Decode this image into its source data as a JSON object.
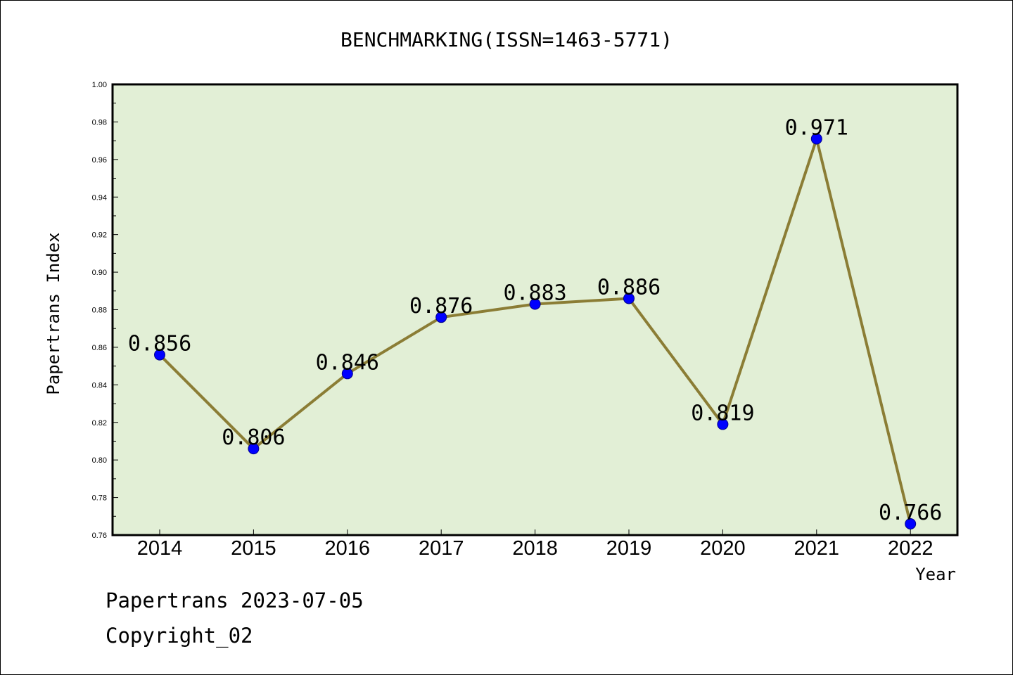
{
  "chart_data": {
    "type": "line",
    "title": "BENCHMARKING(ISSN=1463-5771)",
    "xlabel": "Year",
    "ylabel": "Papertrans Index",
    "categories": [
      "2014",
      "2015",
      "2016",
      "2017",
      "2018",
      "2019",
      "2020",
      "2021",
      "2022"
    ],
    "values": [
      0.856,
      0.806,
      0.846,
      0.876,
      0.883,
      0.886,
      0.819,
      0.971,
      0.766
    ],
    "data_labels": [
      "0.856",
      "0.806",
      "0.846",
      "0.876",
      "0.883",
      "0.886",
      "0.819",
      "0.971",
      "0.766"
    ],
    "ylim": [
      0.76,
      1.0
    ],
    "yticks": [
      "0.76",
      "0.78",
      "0.80",
      "0.82",
      "0.84",
      "0.86",
      "0.88",
      "0.90",
      "0.92",
      "0.94",
      "0.96",
      "0.98",
      "1.00"
    ],
    "grid": false,
    "colors": {
      "plot_background": "#e2efd6",
      "line": "#8b7d35",
      "marker": "#0000ff"
    }
  },
  "footer": {
    "line1": "Papertrans 2023-07-05",
    "line2": "Copyright_02"
  }
}
